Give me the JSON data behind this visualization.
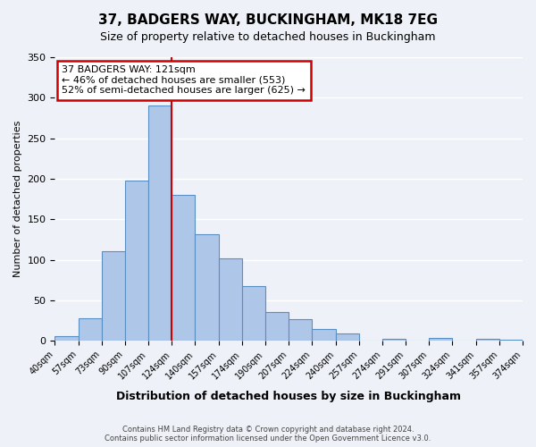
{
  "title": "37, BADGERS WAY, BUCKINGHAM, MK18 7EG",
  "subtitle": "Size of property relative to detached houses in Buckingham",
  "xlabel": "Distribution of detached houses by size in Buckingham",
  "ylabel": "Number of detached properties",
  "bin_edge_labels": [
    "40sqm",
    "57sqm",
    "73sqm",
    "90sqm",
    "107sqm",
    "124sqm",
    "140sqm",
    "157sqm",
    "174sqm",
    "190sqm",
    "207sqm",
    "224sqm",
    "240sqm",
    "257sqm",
    "274sqm",
    "291sqm",
    "307sqm",
    "324sqm",
    "341sqm",
    "357sqm",
    "374sqm"
  ],
  "bar_values": [
    6,
    28,
    110,
    198,
    290,
    180,
    131,
    102,
    68,
    35,
    27,
    15,
    9,
    0,
    2,
    0,
    3,
    0,
    2,
    1
  ],
  "bar_color": "#aec6e8",
  "bar_edge_color": "#5a8fc2",
  "vline_color": "#cc0000",
  "vline_x": 5.0,
  "ylim": [
    0,
    350
  ],
  "yticks": [
    0,
    50,
    100,
    150,
    200,
    250,
    300,
    350
  ],
  "annotation_title": "37 BADGERS WAY: 121sqm",
  "annotation_line1": "← 46% of detached houses are smaller (553)",
  "annotation_line2": "52% of semi-detached houses are larger (625) →",
  "annotation_box_color": "#ffffff",
  "annotation_border_color": "#cc0000",
  "footer_line1": "Contains HM Land Registry data © Crown copyright and database right 2024.",
  "footer_line2": "Contains public sector information licensed under the Open Government Licence v3.0.",
  "background_color": "#eef2f8",
  "grid_color": "#ffffff"
}
